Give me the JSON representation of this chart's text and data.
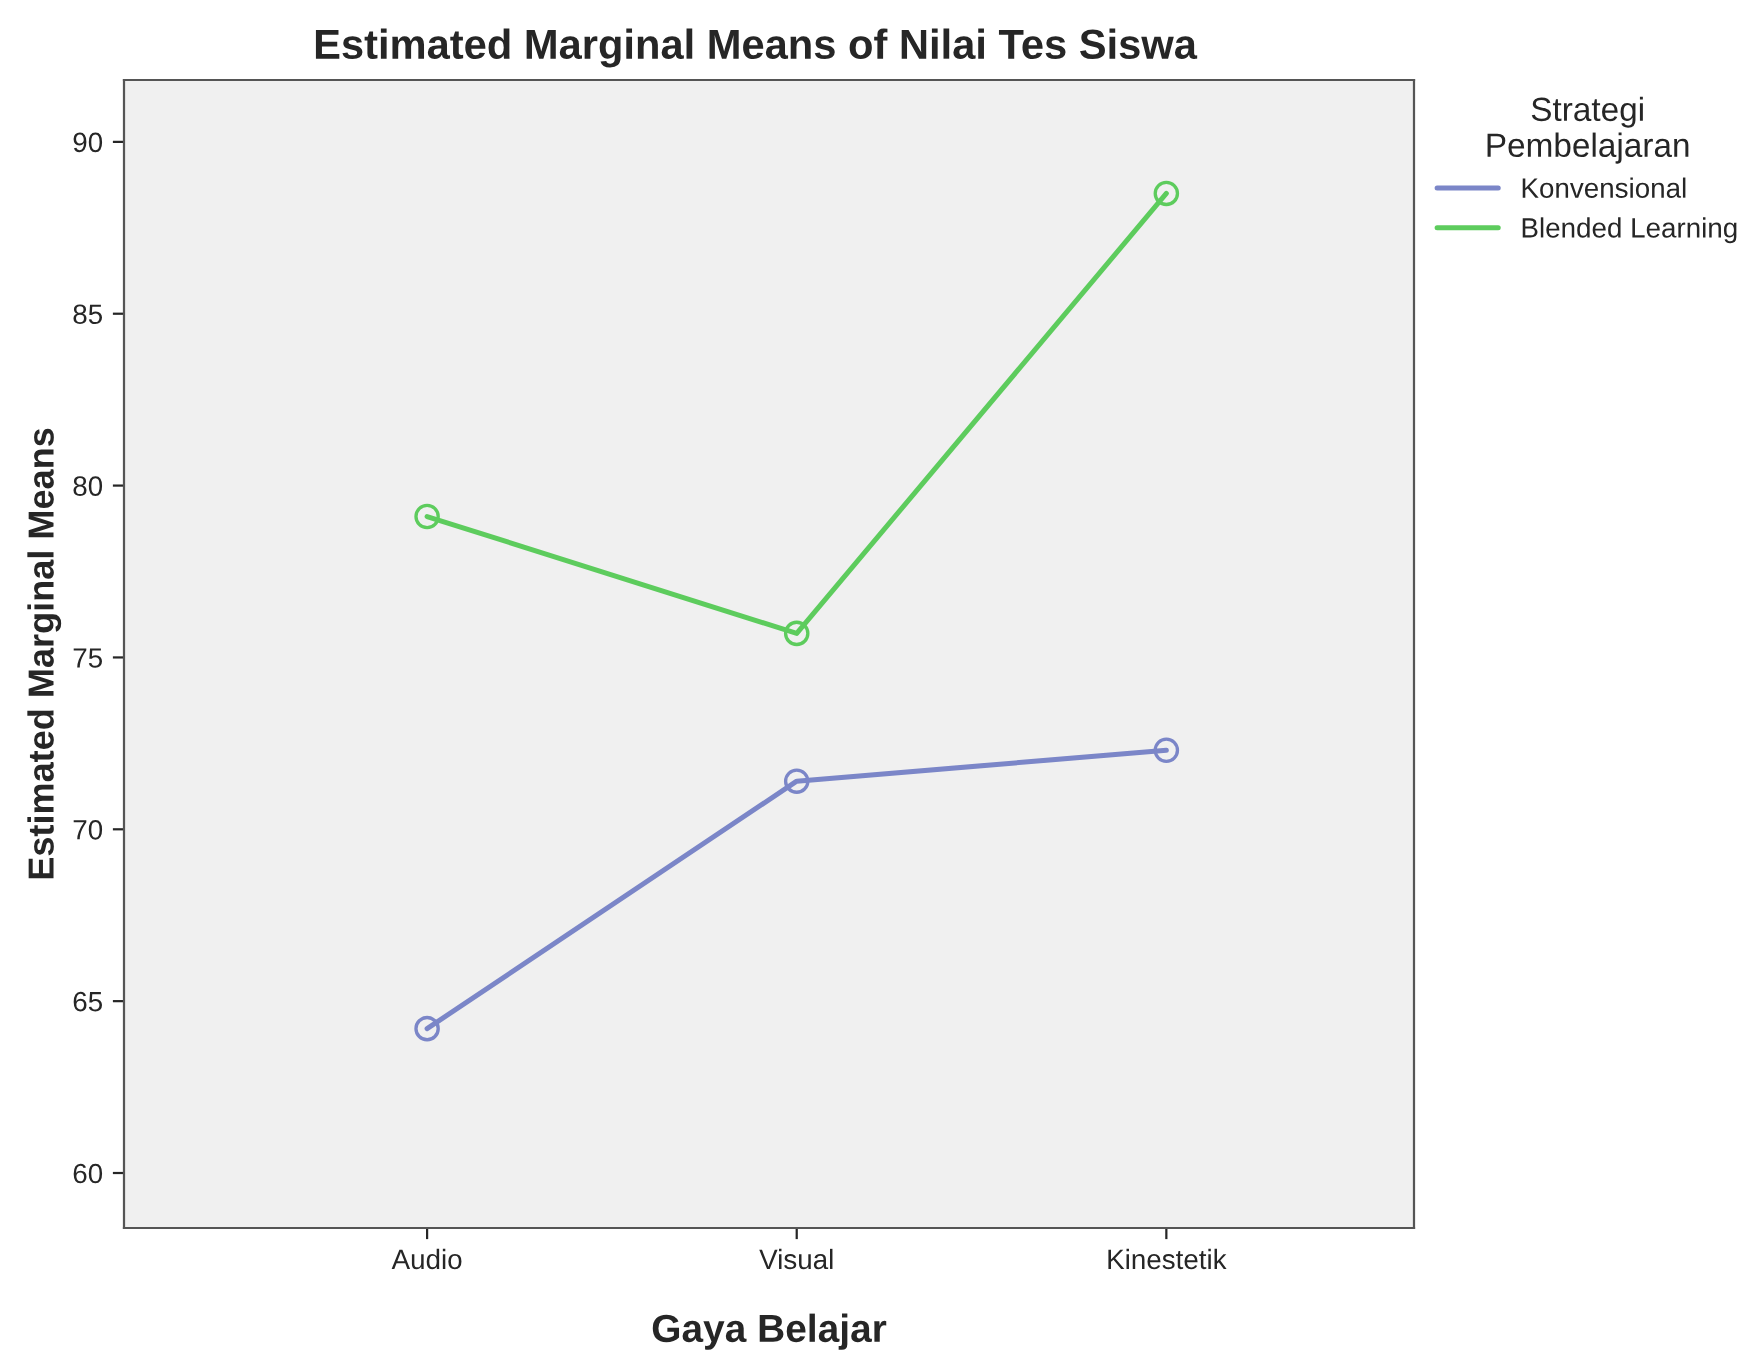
{
  "chart_data": {
    "type": "line",
    "title": "Estimated Marginal Means of Nilai Tes Siswa",
    "xlabel": "Gaya Belajar",
    "ylabel": "Estimated Marginal Means",
    "legend_title": "Strategi\nPembelajaran",
    "categories": [
      "Audio",
      "Visual",
      "Kinestetik"
    ],
    "series": [
      {
        "name": "Konvensional",
        "color": "#7b86c8",
        "values": [
          64.2,
          71.4,
          72.3
        ]
      },
      {
        "name": "Blended Learning",
        "color": "#5dcc5d",
        "values": [
          79.1,
          75.7,
          88.5
        ]
      }
    ],
    "ylim": [
      58.4,
      91.8
    ],
    "yticks": [
      60,
      65,
      70,
      75,
      80,
      85,
      90
    ],
    "grid": false,
    "legend": "top right",
    "marker": "circle",
    "line_style": "solid"
  }
}
